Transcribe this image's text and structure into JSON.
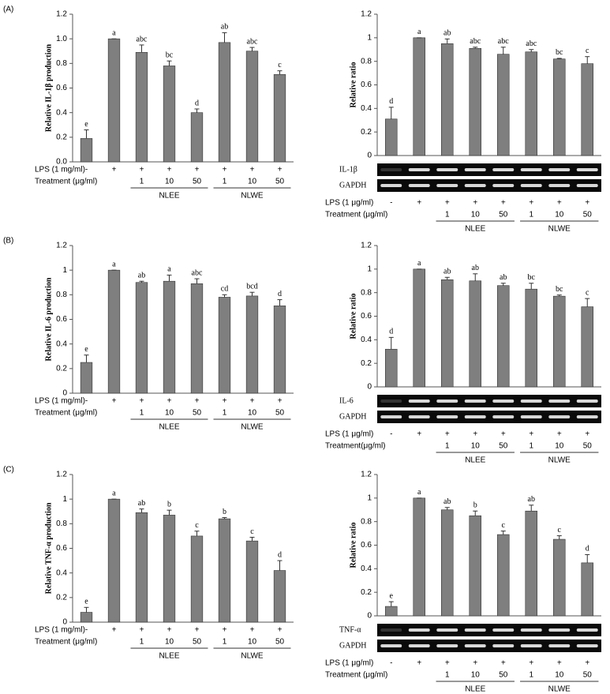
{
  "panel_labels": [
    "(A)",
    "(B)",
    "(C)"
  ],
  "chart_data": [
    {
      "type": "bar",
      "ylabel": "Relative IL-1β production",
      "color": "#7f7f7f",
      "ylim": [
        0,
        1.2
      ],
      "yticks": [
        {
          "value": 0,
          "label": "0.0"
        },
        0.2,
        0.4,
        0.6,
        0.8,
        {
          "value": 1,
          "label": "1.0"
        },
        1.2
      ],
      "values": [
        0.19,
        1.0,
        0.89,
        0.78,
        0.4,
        0.97,
        0.9,
        0.71
      ],
      "errors": [
        0.07,
        0,
        0.06,
        0.04,
        0.03,
        0.08,
        0.03,
        0.03
      ],
      "letters": [
        "e",
        "a",
        "abc",
        "bc",
        "d",
        "ab",
        "abc",
        "c"
      ],
      "lps_label": "LPS (1 mg/ml)",
      "lps": [
        "-",
        "+",
        "+",
        "+",
        "+",
        "+",
        "+",
        "+"
      ],
      "treatment_label": "Treatment (μg/ml)",
      "doses": [
        1,
        10,
        50,
        1,
        10,
        50
      ],
      "groups": [
        "NLEE",
        "NLWE"
      ]
    },
    {
      "type": "bar",
      "ylabel": "Relative ratio",
      "color": "#7f7f7f",
      "ylim": [
        0,
        1.2
      ],
      "yticks": [
        0,
        0.2,
        0.4,
        0.6,
        0.8,
        1,
        1.2
      ],
      "values": [
        0.31,
        1.0,
        0.95,
        0.91,
        0.86,
        0.88,
        0.82,
        0.78
      ],
      "errors": [
        0.1,
        0,
        0.04,
        0.01,
        0.06,
        0.02,
        0.005,
        0.06
      ],
      "letters": [
        "d",
        "a",
        "ab",
        "abc",
        "abc",
        "abc",
        "bc",
        "c"
      ],
      "gel_labels": [
        "IL-1β",
        "GAPDH"
      ],
      "lps_label": "LPS (1 μg/ml)",
      "lps": [
        "-",
        "+",
        "+",
        "+",
        "+",
        "+",
        "+",
        "+"
      ],
      "treatment_label": "Treatment (μg/ml)",
      "doses": [
        1,
        10,
        50,
        1,
        10,
        50
      ],
      "groups": [
        "NLEE",
        "NLWE"
      ]
    },
    {
      "type": "bar",
      "ylabel": "Relative IL-6 production",
      "color": "#7f7f7f",
      "ylim": [
        0,
        1.2
      ],
      "yticks": [
        0,
        0.2,
        0.4,
        0.6,
        0.8,
        1,
        1.2
      ],
      "values": [
        0.25,
        1.0,
        0.9,
        0.91,
        0.89,
        0.78,
        0.79,
        0.71
      ],
      "errors": [
        0.06,
        0,
        0.01,
        0.05,
        0.04,
        0.02,
        0.03,
        0.05
      ],
      "letters": [
        "e",
        "a",
        "ab",
        "a",
        "abc",
        "cd",
        "bcd",
        "d"
      ],
      "lps_label": "LPS (1 mg/ml)",
      "lps": [
        "-",
        "+",
        "+",
        "+",
        "+",
        "+",
        "+",
        "+"
      ],
      "treatment_label": "Treatment (μg/ml)",
      "doses": [
        1,
        10,
        50,
        1,
        10,
        50
      ],
      "groups": [
        "NLEE",
        "NLWE"
      ]
    },
    {
      "type": "bar",
      "ylabel": "Relative ratio",
      "color": "#7f7f7f",
      "ylim": [
        0,
        1.2
      ],
      "yticks": [
        0,
        0.2,
        0.4,
        0.6,
        0.8,
        1,
        1.2
      ],
      "values": [
        0.32,
        1.0,
        0.91,
        0.9,
        0.86,
        0.83,
        0.77,
        0.68
      ],
      "errors": [
        0.1,
        0,
        0.02,
        0.06,
        0.02,
        0.05,
        0.01,
        0.07
      ],
      "letters": [
        "d",
        "a",
        "ab",
        "ab",
        "ab",
        "bc",
        "bc",
        "c"
      ],
      "gel_labels": [
        "IL-6",
        "GAPDH"
      ],
      "lps_label": "LPS (1 μg/ml)",
      "lps": [
        "-",
        "+",
        "+",
        "+",
        "+",
        "+",
        "+",
        "+"
      ],
      "treatment_label": "Treatment(μg/ml)",
      "doses": [
        1,
        10,
        50,
        1,
        10,
        50
      ],
      "groups": [
        "NLEE",
        "NLWE"
      ]
    },
    {
      "type": "bar",
      "ylabel": "Relative TNF-α production",
      "color": "#7f7f7f",
      "ylim": [
        0,
        1.2
      ],
      "yticks": [
        0,
        0.2,
        0.4,
        0.6,
        0.8,
        1,
        1.2
      ],
      "values": [
        0.08,
        1.0,
        0.89,
        0.87,
        0.7,
        0.84,
        0.66,
        0.42
      ],
      "errors": [
        0.04,
        0,
        0.03,
        0.04,
        0.04,
        0.01,
        0.03,
        0.08
      ],
      "letters": [
        "e",
        "a",
        "ab",
        "b",
        "c",
        "b",
        "c",
        "d"
      ],
      "lps_label": "LPS (1 mg/ml)",
      "lps": [
        "-",
        "+",
        "+",
        "+",
        "+",
        "+",
        "+",
        "+"
      ],
      "treatment_label": "Treatment (μg/ml)",
      "doses": [
        1,
        10,
        50,
        1,
        10,
        50
      ],
      "groups": [
        "NLEE",
        "NLWE"
      ]
    },
    {
      "type": "bar",
      "ylabel": "Relative ratio",
      "color": "#7f7f7f",
      "ylim": [
        0,
        1.2
      ],
      "yticks": [
        0,
        0.2,
        0.4,
        0.6,
        0.8,
        1,
        1.2
      ],
      "values": [
        0.08,
        1.0,
        0.9,
        0.85,
        0.69,
        0.89,
        0.65,
        0.45
      ],
      "errors": [
        0.04,
        0,
        0.02,
        0.04,
        0.03,
        0.05,
        0.03,
        0.07
      ],
      "letters": [
        "e",
        "a",
        "ab",
        "b",
        "c",
        "ab",
        "c",
        "d"
      ],
      "gel_labels": [
        "TNF-α",
        "GAPDH"
      ],
      "lps_label": "LPS (1 μg/ml)",
      "lps": [
        "-",
        "+",
        "+",
        "+",
        "+",
        "+",
        "+",
        "+"
      ],
      "treatment_label": "Treatment (μg/ml)",
      "doses": [
        1,
        10,
        50,
        1,
        10,
        50
      ],
      "groups": [
        "NLEE",
        "NLWE"
      ]
    }
  ]
}
